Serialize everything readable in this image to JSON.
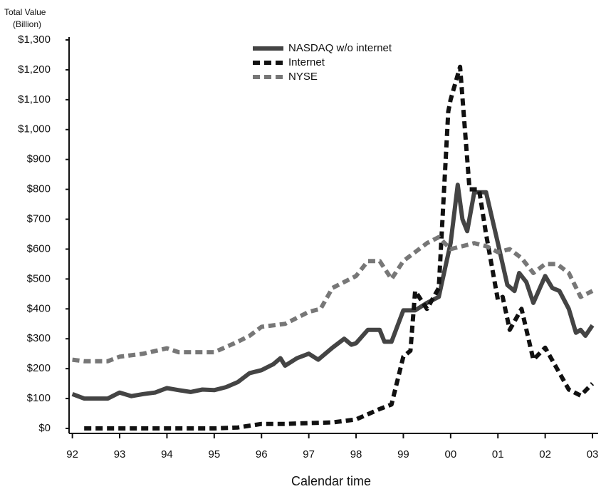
{
  "chart_data": {
    "type": "line",
    "ylabel": [
      "Total Value",
      "(Billion)"
    ],
    "xlabel": "Calendar time",
    "xlim": [
      1991.93,
      2003.12
    ],
    "ylim": [
      0,
      1300
    ],
    "xticks": [
      {
        "value": 1992,
        "label": "92"
      },
      {
        "value": 1993,
        "label": "93"
      },
      {
        "value": 1994,
        "label": "94"
      },
      {
        "value": 1995,
        "label": "95"
      },
      {
        "value": 1996,
        "label": "96"
      },
      {
        "value": 1997,
        "label": "97"
      },
      {
        "value": 1998,
        "label": "98"
      },
      {
        "value": 1999,
        "label": "99"
      },
      {
        "value": 2000,
        "label": "00"
      },
      {
        "value": 2001,
        "label": "01"
      },
      {
        "value": 2002,
        "label": "02"
      },
      {
        "value": 2003,
        "label": "03"
      }
    ],
    "yticks": [
      {
        "value": 0,
        "label": "$0"
      },
      {
        "value": 100,
        "label": "$100"
      },
      {
        "value": 200,
        "label": "$200"
      },
      {
        "value": 300,
        "label": "$300"
      },
      {
        "value": 400,
        "label": "$400"
      },
      {
        "value": 500,
        "label": "$500"
      },
      {
        "value": 600,
        "label": "$600"
      },
      {
        "value": 700,
        "label": "$700"
      },
      {
        "value": 800,
        "label": "$800"
      },
      {
        "value": 900,
        "label": "$900"
      },
      {
        "value": 1000,
        "label": "$1,000"
      },
      {
        "value": 1100,
        "label": "$1,100"
      },
      {
        "value": 1200,
        "label": "$1,200"
      },
      {
        "value": 1300,
        "label": "$1,300"
      }
    ],
    "grid": false,
    "legend": "top",
    "series": [
      {
        "name": "NASDAQ w/o internet",
        "color": "#444444",
        "style": "solid",
        "x": [
          1992,
          1992.25,
          1992.5,
          1992.75,
          1993,
          1993.25,
          1993.5,
          1993.75,
          1994,
          1994.25,
          1994.5,
          1994.75,
          1995,
          1995.25,
          1995.5,
          1995.75,
          1996,
          1996.25,
          1996.4,
          1996.5,
          1996.75,
          1997,
          1997.2,
          1997.5,
          1997.75,
          1997.9,
          1998,
          1998.25,
          1998.5,
          1998.6,
          1998.75,
          1999,
          1999.25,
          1999.5,
          1999.75,
          2000,
          2000.15,
          2000.25,
          2000.35,
          2000.5,
          2000.75,
          2001,
          2001.2,
          2001.35,
          2001.45,
          2001.6,
          2001.75,
          2002,
          2002.15,
          2002.3,
          2002.5,
          2002.65,
          2002.75,
          2002.85,
          2003
        ],
        "values": [
          115,
          100,
          100,
          100,
          120,
          108,
          115,
          120,
          135,
          128,
          122,
          130,
          128,
          138,
          155,
          185,
          195,
          215,
          235,
          210,
          235,
          250,
          230,
          270,
          300,
          280,
          285,
          330,
          330,
          290,
          290,
          395,
          395,
          420,
          440,
          620,
          815,
          700,
          660,
          790,
          790,
          620,
          480,
          460,
          520,
          490,
          420,
          510,
          470,
          460,
          400,
          320,
          330,
          310,
          345
        ]
      },
      {
        "name": "Internet",
        "color": "#111111",
        "style": "dashed",
        "x": [
          1992.25,
          1993,
          1994,
          1995,
          1995.5,
          1996,
          1996.5,
          1997,
          1997.5,
          1998,
          1998.5,
          1998.75,
          1999,
          1999.15,
          1999.25,
          1999.5,
          1999.75,
          1999.95,
          2000,
          2000.2,
          2000.4,
          2000.6,
          2000.75,
          2001,
          2001.1,
          2001.25,
          2001.5,
          2001.75,
          2002,
          2002.25,
          2002.5,
          2002.75,
          2003
        ],
        "values": [
          0,
          0,
          0,
          0,
          3,
          15,
          15,
          18,
          20,
          30,
          65,
          80,
          240,
          260,
          460,
          400,
          470,
          1060,
          1100,
          1210,
          800,
          800,
          650,
          430,
          440,
          330,
          400,
          230,
          270,
          200,
          130,
          110,
          150
        ]
      },
      {
        "name": "NYSE",
        "color": "#777777",
        "style": "dashed",
        "x": [
          1992,
          1992.25,
          1992.75,
          1993,
          1993.5,
          1994,
          1994.25,
          1994.5,
          1995,
          1995.5,
          1995.75,
          1996,
          1996.5,
          1997,
          1997.25,
          1997.5,
          1997.75,
          1998,
          1998.25,
          1998.5,
          1998.75,
          1999,
          1999.5,
          1999.75,
          2000,
          2000.25,
          2000.5,
          2000.75,
          2001,
          2001.25,
          2001.5,
          2001.75,
          2002,
          2002.25,
          2002.5,
          2002.75,
          2003
        ],
        "values": [
          230,
          225,
          225,
          240,
          250,
          268,
          255,
          255,
          255,
          290,
          310,
          340,
          350,
          390,
          400,
          470,
          490,
          510,
          560,
          560,
          500,
          560,
          620,
          640,
          600,
          610,
          620,
          610,
          590,
          600,
          570,
          520,
          550,
          550,
          520,
          440,
          460
        ]
      }
    ]
  }
}
